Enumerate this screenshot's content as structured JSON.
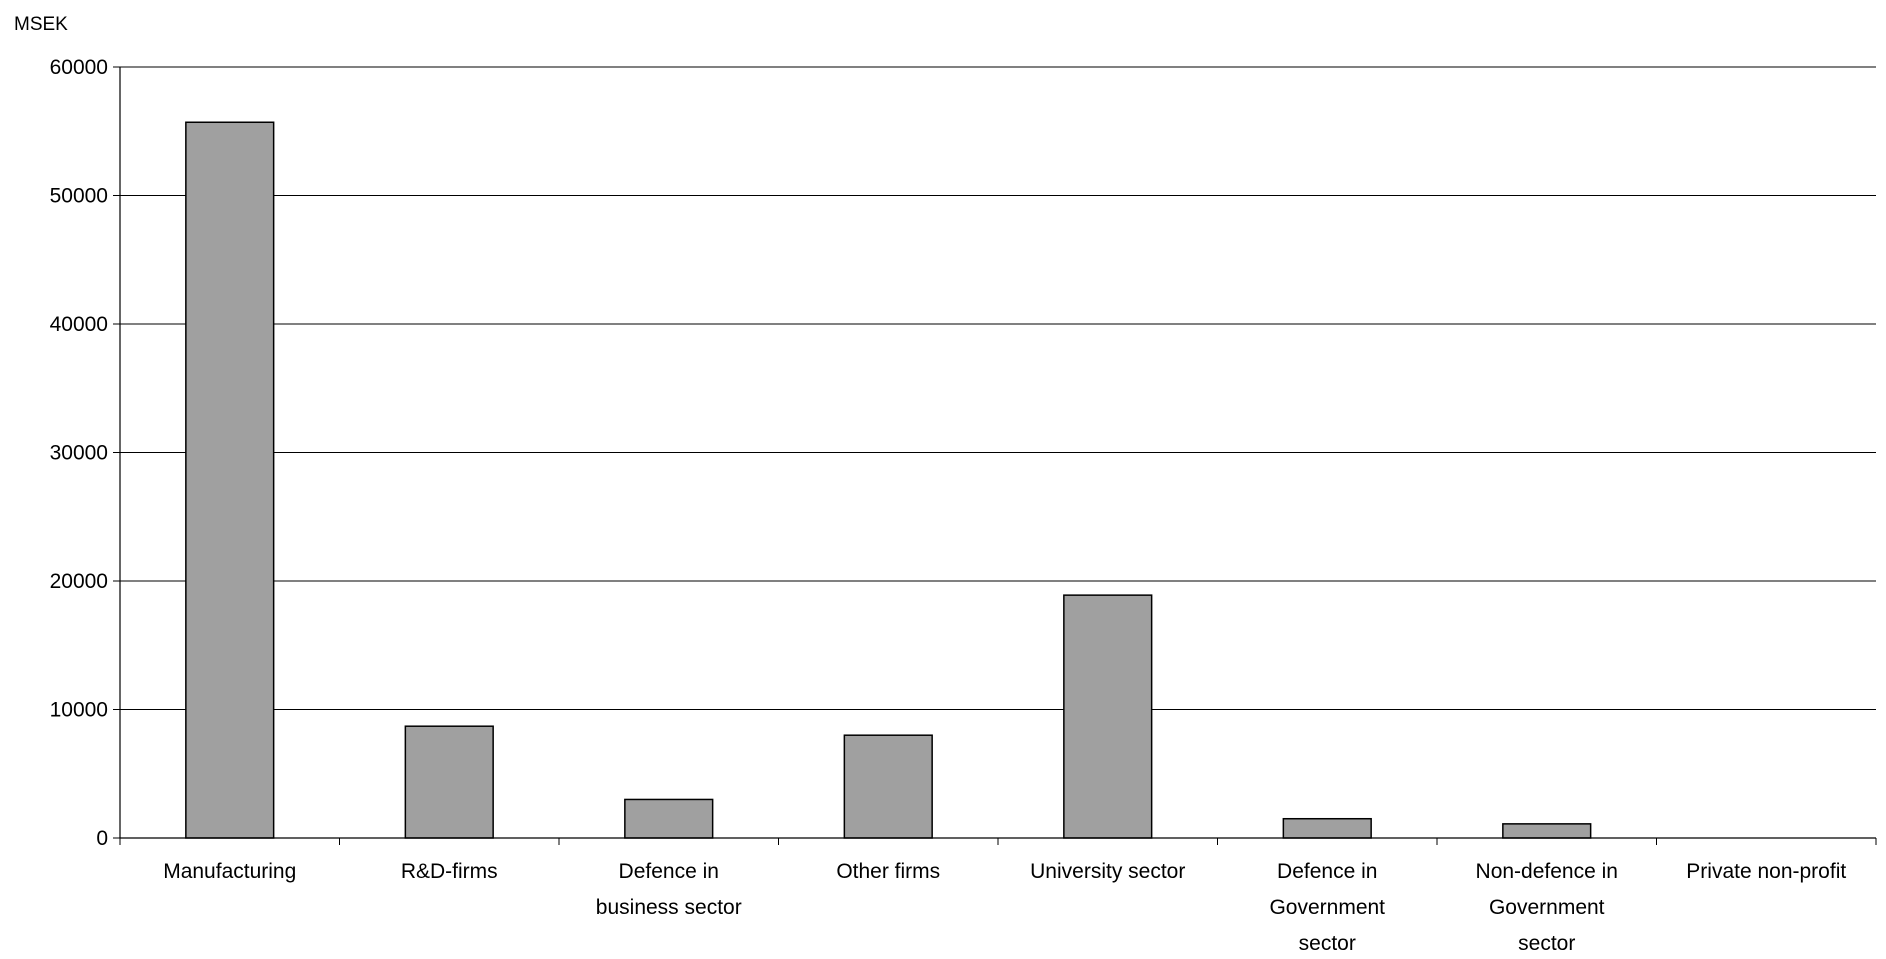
{
  "chart_data": {
    "type": "bar",
    "unit_label": "MSEK",
    "title": "",
    "xlabel": "",
    "ylabel": "",
    "ylim": [
      0,
      60000
    ],
    "yticks": [
      0,
      10000,
      20000,
      30000,
      40000,
      50000,
      60000
    ],
    "grid": true,
    "legend": "none",
    "bar_color": "#a0a0a0",
    "bar_edge_color": "#000000",
    "categories": [
      [
        "Manufacturing"
      ],
      [
        "R&D-firms"
      ],
      [
        "Defence in",
        "business sector"
      ],
      [
        "Other firms"
      ],
      [
        "University sector"
      ],
      [
        "Defence in",
        "Government",
        "sector"
      ],
      [
        "Non-defence in",
        "Government",
        "sector"
      ],
      [
        "Private non-profit"
      ]
    ],
    "values": [
      55700,
      8700,
      3000,
      8000,
      18900,
      1500,
      1100,
      0
    ]
  }
}
